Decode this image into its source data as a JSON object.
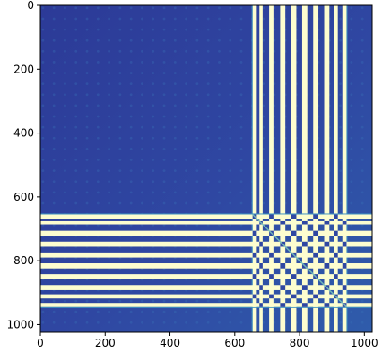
{
  "chart_data": {
    "type": "heatmap",
    "title": "",
    "xlabel": "",
    "ylabel": "",
    "xlim": [
      0,
      1024
    ],
    "ylim": [
      1024,
      0
    ],
    "x_ticks": [
      0,
      200,
      400,
      600,
      800,
      1000
    ],
    "y_ticks": [
      0,
      200,
      400,
      600,
      800,
      1000
    ],
    "x_tick_labels": [
      "0",
      "200",
      "400",
      "600",
      "800",
      "1000"
    ],
    "y_tick_labels": [
      "0",
      "200",
      "400",
      "600",
      "800",
      "1000"
    ],
    "colormap": "YlGnBu",
    "colors": {
      "background_dark": "#2c3a97",
      "background_mid": "#2f47a2",
      "background_edge": "#2f5cab",
      "dot": "#3a73b7",
      "stripe_light": "#fdfdcf",
      "stripe_mid": "#3f93c2",
      "diagonal": "#7fcdbb"
    },
    "band_start": 655,
    "band_end": 945,
    "stripes": [
      {
        "start": 655,
        "end": 668
      },
      {
        "start": 676,
        "end": 686
      },
      {
        "start": 706,
        "end": 722
      },
      {
        "start": 740,
        "end": 756
      },
      {
        "start": 774,
        "end": 790
      },
      {
        "start": 808,
        "end": 824
      },
      {
        "start": 842,
        "end": 858
      },
      {
        "start": 876,
        "end": 892
      },
      {
        "start": 905,
        "end": 918
      },
      {
        "start": 932,
        "end": 945
      }
    ]
  }
}
